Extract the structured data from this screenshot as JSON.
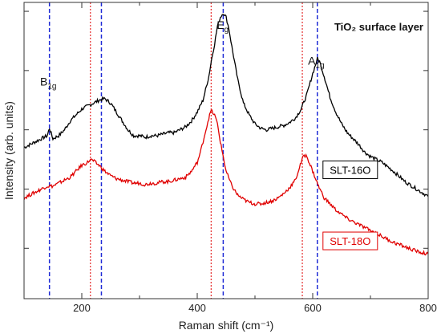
{
  "chart_data": {
    "type": "line",
    "title": "TiO₂ surface layer",
    "xlabel": "Raman shift (cm⁻¹)",
    "ylabel": "Intensity (arb. units)",
    "xlim": [
      100,
      800
    ],
    "ylim": [
      0,
      10
    ],
    "x_ticks": [
      200,
      400,
      600,
      800
    ],
    "y_tick_labels_shown": false,
    "y_tick_positions": [
      1.7,
      3.7,
      5.7,
      7.7,
      9.7
    ],
    "grid": false,
    "colors": {
      "SLT-16O": "#000000",
      "SLT-18O": "#e00000",
      "blue_lines": "#1f2bd6",
      "red_lines": "#e00000"
    },
    "peak_labels": [
      {
        "base": "B",
        "sub": "1g",
        "x": 150,
        "y": 7.2
      },
      {
        "base": "E",
        "sub": "g",
        "x": 456,
        "y": 9.1
      },
      {
        "base": "A",
        "sub": "1g",
        "x": 614,
        "y": 7.9
      }
    ],
    "vertical_lines_blue": [
      144,
      234,
      445,
      608
    ],
    "vertical_lines_red": [
      215,
      424,
      582
    ],
    "series": [
      {
        "name": "SLT-16O",
        "color": "#000000",
        "label_style": "boxed",
        "label_position": {
          "x": 665,
          "y": 4.35
        },
        "x": [
          100,
          110,
          120,
          130,
          140,
          144,
          150,
          160,
          170,
          180,
          190,
          200,
          210,
          220,
          230,
          240,
          250,
          260,
          270,
          280,
          290,
          300,
          310,
          320,
          330,
          340,
          350,
          360,
          370,
          380,
          390,
          400,
          410,
          420,
          425,
          430,
          435,
          440,
          445,
          450,
          455,
          460,
          470,
          480,
          490,
          500,
          510,
          520,
          530,
          540,
          550,
          560,
          570,
          580,
          590,
          600,
          605,
          608,
          612,
          620,
          630,
          640,
          650,
          660,
          670,
          680,
          690,
          700,
          720,
          740,
          760,
          780,
          800
        ],
        "values": [
          5.1,
          5.2,
          5.3,
          5.4,
          5.5,
          5.75,
          5.4,
          5.5,
          5.7,
          6.0,
          6.2,
          6.4,
          6.5,
          6.6,
          6.7,
          6.75,
          6.6,
          6.3,
          6.0,
          5.7,
          5.5,
          5.5,
          5.45,
          5.5,
          5.5,
          5.55,
          5.6,
          5.6,
          5.7,
          5.8,
          6.0,
          6.3,
          6.7,
          7.5,
          8.1,
          8.6,
          9.2,
          9.5,
          9.65,
          9.5,
          9.1,
          8.5,
          7.4,
          6.6,
          6.2,
          5.9,
          5.75,
          5.7,
          5.75,
          5.8,
          5.85,
          5.95,
          6.1,
          6.4,
          6.9,
          7.6,
          7.9,
          8.1,
          8.0,
          7.5,
          6.8,
          6.3,
          5.9,
          5.6,
          5.4,
          5.2,
          4.95,
          4.8,
          4.6,
          4.3,
          3.95,
          3.7,
          3.45
        ]
      },
      {
        "name": "SLT-18O",
        "color": "#e00000",
        "label_style": "boxed",
        "label_position": {
          "x": 665,
          "y": 1.95
        },
        "x": [
          100,
          110,
          120,
          130,
          140,
          150,
          160,
          170,
          180,
          190,
          200,
          210,
          215,
          220,
          230,
          240,
          250,
          260,
          270,
          280,
          290,
          300,
          310,
          320,
          330,
          340,
          350,
          360,
          370,
          380,
          390,
          400,
          405,
          410,
          415,
          420,
          424,
          430,
          435,
          440,
          450,
          460,
          470,
          480,
          490,
          500,
          510,
          520,
          530,
          540,
          550,
          560,
          570,
          580,
          585,
          590,
          600,
          610,
          620,
          640,
          660,
          680,
          700,
          720,
          740,
          760,
          780,
          800
        ],
        "values": [
          3.4,
          3.5,
          3.6,
          3.7,
          3.8,
          3.8,
          3.9,
          4.0,
          4.1,
          4.3,
          4.5,
          4.6,
          4.7,
          4.65,
          4.5,
          4.3,
          4.15,
          4.05,
          4.0,
          3.95,
          3.9,
          3.9,
          3.85,
          3.9,
          3.9,
          3.95,
          3.95,
          4.0,
          4.05,
          4.1,
          4.3,
          4.6,
          4.9,
          5.3,
          5.7,
          6.1,
          6.35,
          6.2,
          5.9,
          5.3,
          4.3,
          3.8,
          3.5,
          3.35,
          3.25,
          3.2,
          3.2,
          3.25,
          3.3,
          3.4,
          3.55,
          3.75,
          4.0,
          4.6,
          4.85,
          4.8,
          4.3,
          3.8,
          3.4,
          3.0,
          2.7,
          2.5,
          2.3,
          2.1,
          1.9,
          1.75,
          1.6,
          1.5
        ]
      }
    ]
  }
}
